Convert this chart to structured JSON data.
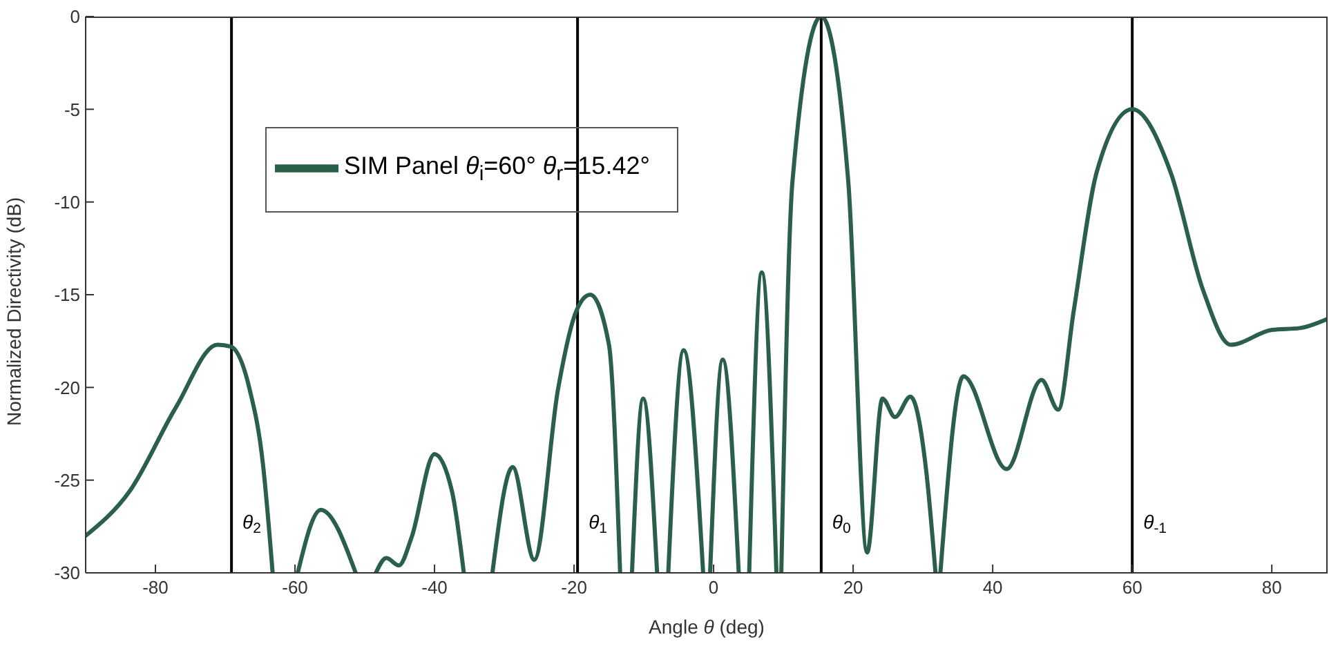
{
  "chart_data": {
    "type": "line",
    "xlabel": "Angle θ (deg)",
    "ylabel": "Normalized Directivity (dB)",
    "x": [
      -90,
      -83.7,
      -77.1,
      -71.1,
      -69.2,
      -66.5,
      -64.6,
      -63.2,
      -61.4,
      -59.6,
      -56.3,
      -51.3,
      -49.8,
      -48.4,
      -46.9,
      -45.1,
      -43.3,
      -40,
      -37.5,
      -35.8,
      -33.7,
      -31.7,
      -28.8,
      -25.7,
      -22.3,
      -19.7,
      -17.7,
      -15,
      -13.4,
      -12.5,
      -11.7,
      -10.1,
      -8.1,
      -7.3,
      -6.5,
      -4.3,
      -1.5,
      -1,
      -0.5,
      1.3,
      3.6,
      4.3,
      5.1,
      6.9,
      9,
      9.3,
      9.7,
      11.3,
      15.42,
      19.3,
      22,
      24.2,
      26,
      28.2,
      30.5,
      31.8,
      32.1,
      32.5,
      35.8,
      42,
      47,
      49.4,
      51.6,
      54.9,
      60,
      65.5,
      70.1,
      74.1,
      80,
      84,
      88
    ],
    "series": [
      {
        "name": "SIM Panel θ$_{i}$=60° θ$_{r}$=15.42°",
        "color": "#2a6049",
        "values": [
          -28,
          -25.6,
          -21.1,
          -17.7,
          -17.8,
          -20.1,
          -24.1,
          -30,
          null,
          -30,
          -26.6,
          -30,
          null,
          -30,
          -29.2,
          -29.6,
          -28.1,
          -23.6,
          -25.6,
          -30,
          null,
          -30,
          -24.3,
          -29.3,
          -20.1,
          -15.9,
          -15,
          -17.7,
          -30,
          null,
          -30,
          -20.6,
          -30,
          null,
          -30,
          -18,
          -30,
          null,
          -30,
          -18.5,
          -30,
          null,
          -30,
          -13.8,
          -30,
          null,
          -30,
          -8.9,
          0,
          -8.9,
          -28.9,
          -20.6,
          -21.6,
          -20.5,
          -24.6,
          -30,
          null,
          -30,
          -19.4,
          -24.4,
          -19.6,
          -21.2,
          -15.9,
          -8.4,
          -5,
          -8.4,
          -14.7,
          -17.7,
          -16.9,
          -16.8,
          -16.3
        ]
      }
    ],
    "xlim": [
      -90,
      88
    ],
    "ylim": [
      -30,
      0
    ],
    "xticks": [
      -80,
      -60,
      -40,
      -20,
      0,
      20,
      40,
      60,
      80
    ],
    "yticks": [
      -30,
      -25,
      -20,
      -15,
      -10,
      -5,
      0
    ],
    "ref_lines": [
      {
        "axis": "x",
        "value": -69.1,
        "label": "θ$_{2}$",
        "color": "#000000"
      },
      {
        "axis": "x",
        "value": -19.5,
        "label": "θ$_{1}$",
        "color": "#000000"
      },
      {
        "axis": "x",
        "value": 15.42,
        "label": "θ$_{0}$",
        "color": "#000000"
      },
      {
        "axis": "x",
        "value": 60,
        "label": "θ$_{-1}$",
        "color": "#000000"
      }
    ],
    "grid": false,
    "legend": "top left",
    "marker": "none",
    "line_style": "solid"
  }
}
